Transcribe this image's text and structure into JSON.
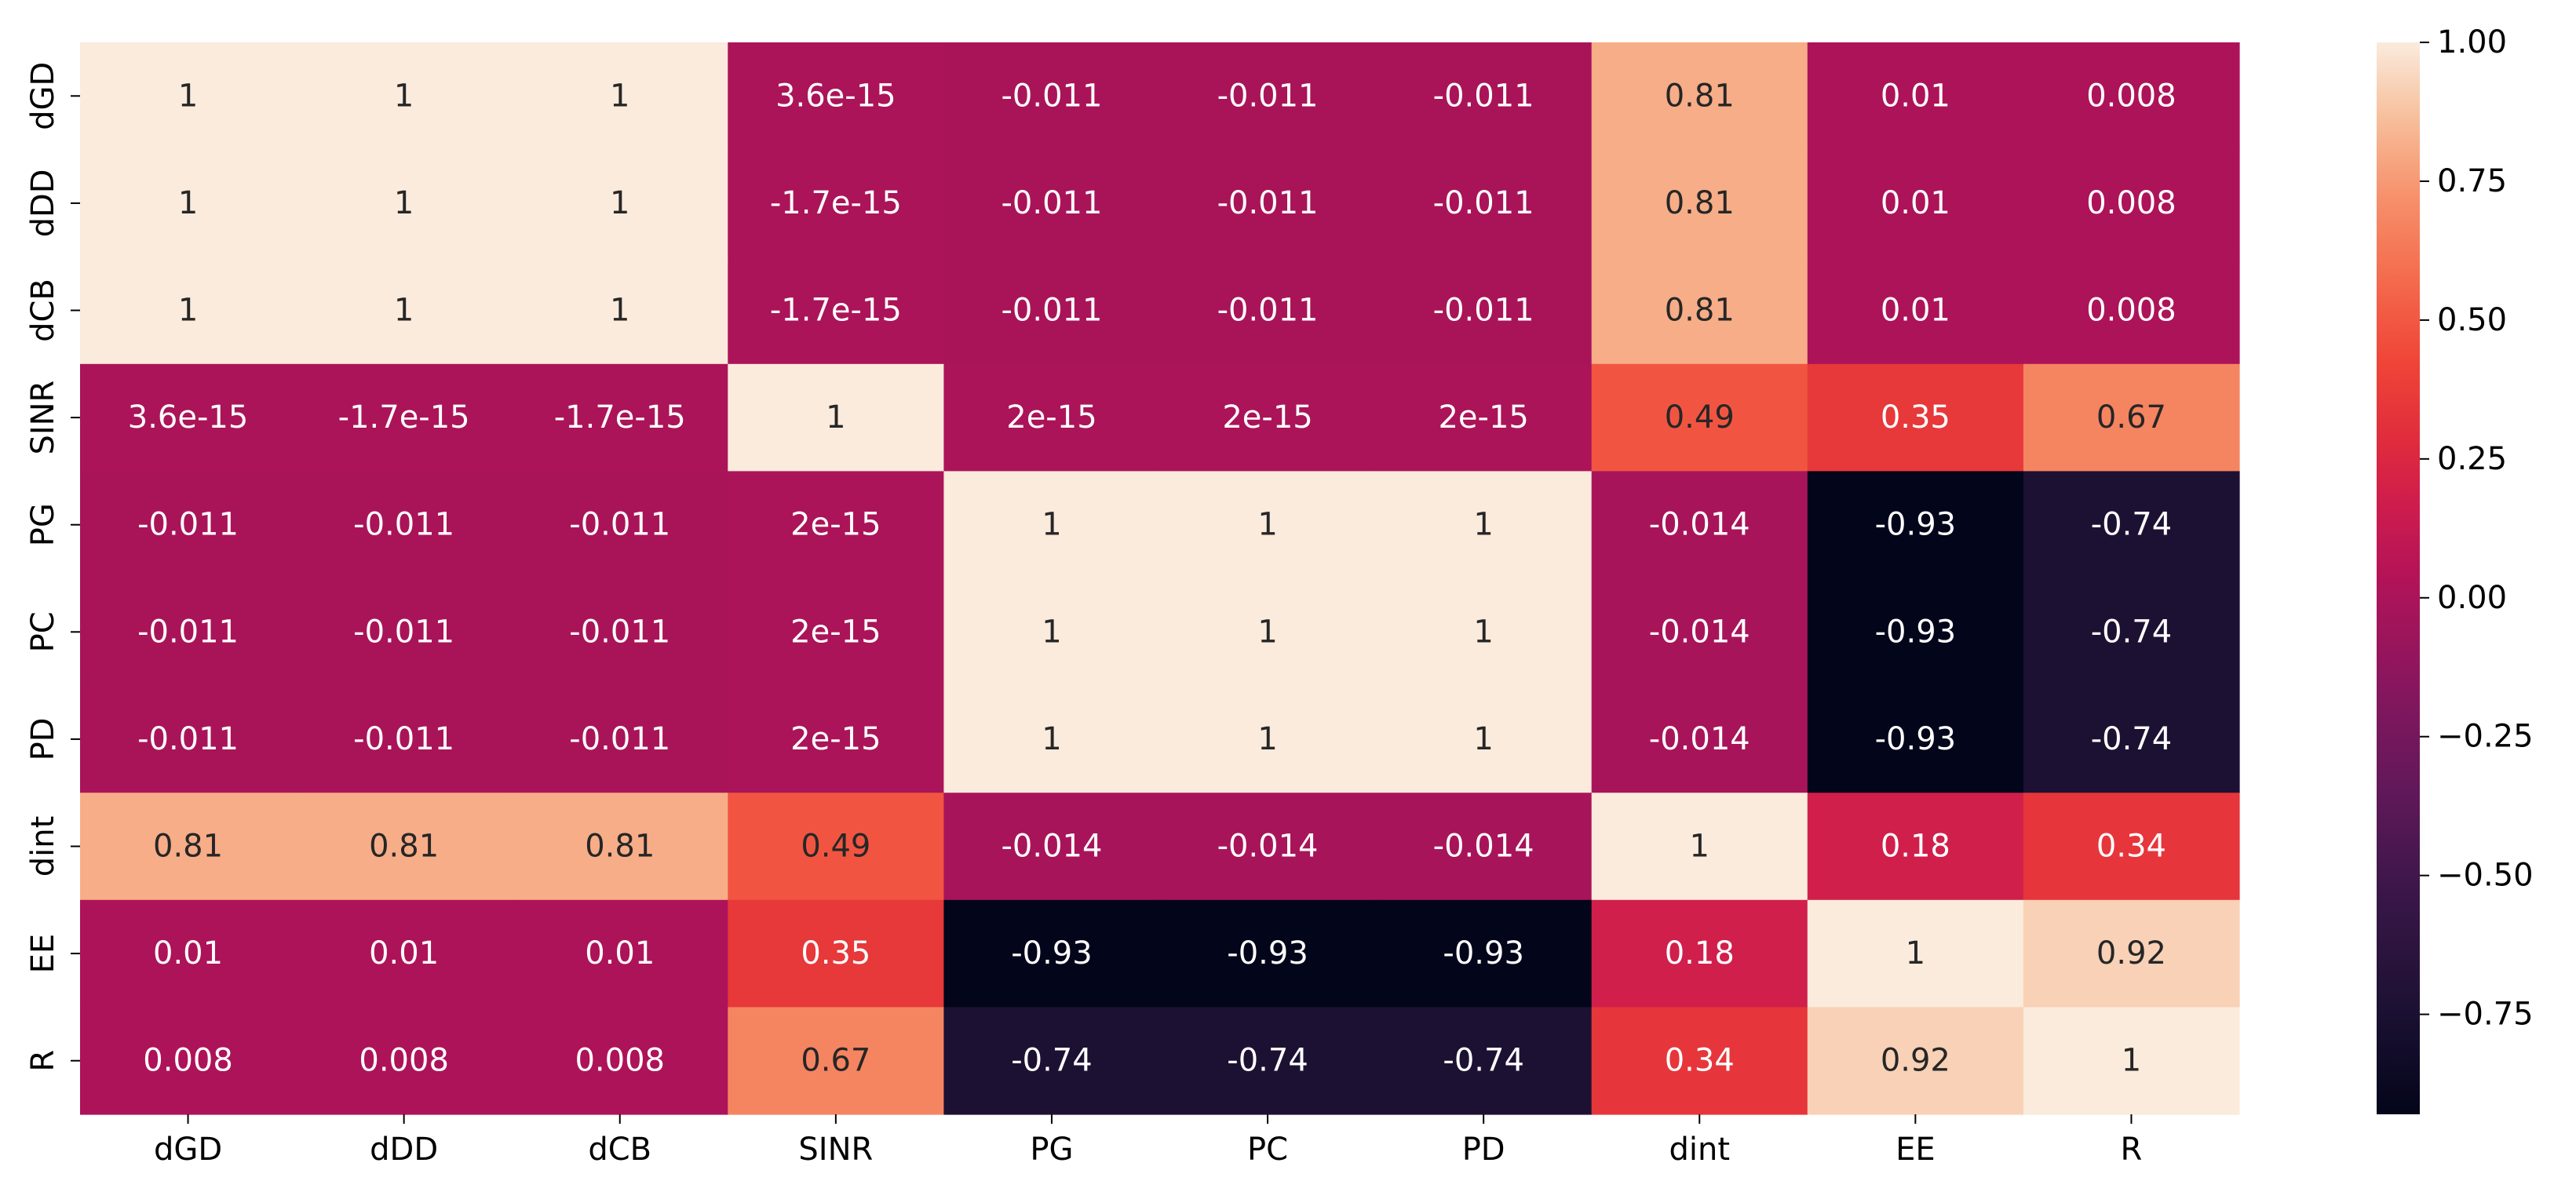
{
  "chart_data": {
    "type": "heatmap",
    "title": "",
    "xlabel": "",
    "ylabel": "",
    "x_labels": [
      "dGD",
      "dDD",
      "dCB",
      "SINR",
      "PG",
      "PC",
      "PD",
      "dint",
      "EE",
      "R"
    ],
    "y_labels": [
      "dGD",
      "dDD",
      "dCB",
      "SINR",
      "PG",
      "PC",
      "PD",
      "dint",
      "EE",
      "R"
    ],
    "values": [
      [
        1,
        1,
        1,
        3.6e-15,
        -0.011,
        -0.011,
        -0.011,
        0.81,
        0.01,
        0.008
      ],
      [
        1,
        1,
        1,
        -1.7e-15,
        -0.011,
        -0.011,
        -0.011,
        0.81,
        0.01,
        0.008
      ],
      [
        1,
        1,
        1,
        -1.7e-15,
        -0.011,
        -0.011,
        -0.011,
        0.81,
        0.01,
        0.008
      ],
      [
        3.6e-15,
        -1.7e-15,
        -1.7e-15,
        1,
        2e-15,
        2e-15,
        2e-15,
        0.49,
        0.35,
        0.67
      ],
      [
        -0.011,
        -0.011,
        -0.011,
        2e-15,
        1,
        1,
        1,
        -0.014,
        -0.93,
        -0.74
      ],
      [
        -0.011,
        -0.011,
        -0.011,
        2e-15,
        1,
        1,
        1,
        -0.014,
        -0.93,
        -0.74
      ],
      [
        -0.011,
        -0.011,
        -0.011,
        2e-15,
        1,
        1,
        1,
        -0.014,
        -0.93,
        -0.74
      ],
      [
        0.81,
        0.81,
        0.81,
        0.49,
        -0.014,
        -0.014,
        -0.014,
        1,
        0.18,
        0.34
      ],
      [
        0.01,
        0.01,
        0.01,
        0.35,
        -0.93,
        -0.93,
        -0.93,
        0.18,
        1,
        0.92
      ],
      [
        0.008,
        0.008,
        0.008,
        0.67,
        -0.74,
        -0.74,
        -0.74,
        0.34,
        0.92,
        1
      ]
    ],
    "annotations": [
      [
        "1",
        "1",
        "1",
        "3.6e-15",
        "-0.011",
        "-0.011",
        "-0.011",
        "0.81",
        "0.01",
        "0.008"
      ],
      [
        "1",
        "1",
        "1",
        "-1.7e-15",
        "-0.011",
        "-0.011",
        "-0.011",
        "0.81",
        "0.01",
        "0.008"
      ],
      [
        "1",
        "1",
        "1",
        "-1.7e-15",
        "-0.011",
        "-0.011",
        "-0.011",
        "0.81",
        "0.01",
        "0.008"
      ],
      [
        "3.6e-15",
        "-1.7e-15",
        "-1.7e-15",
        "1",
        "2e-15",
        "2e-15",
        "2e-15",
        "0.49",
        "0.35",
        "0.67"
      ],
      [
        "-0.011",
        "-0.011",
        "-0.011",
        "2e-15",
        "1",
        "1",
        "1",
        "-0.014",
        "-0.93",
        "-0.74"
      ],
      [
        "-0.011",
        "-0.011",
        "-0.011",
        "2e-15",
        "1",
        "1",
        "1",
        "-0.014",
        "-0.93",
        "-0.74"
      ],
      [
        "-0.011",
        "-0.011",
        "-0.011",
        "2e-15",
        "1",
        "1",
        "1",
        "-0.014",
        "-0.93",
        "-0.74"
      ],
      [
        "0.81",
        "0.81",
        "0.81",
        "0.49",
        "-0.014",
        "-0.014",
        "-0.014",
        "1",
        "0.18",
        "0.34"
      ],
      [
        "0.01",
        "0.01",
        "0.01",
        "0.35",
        "-0.93",
        "-0.93",
        "-0.93",
        "0.18",
        "1",
        "0.92"
      ],
      [
        "0.008",
        "0.008",
        "0.008",
        "0.67",
        "-0.74",
        "-0.74",
        "-0.74",
        "0.34",
        "0.92",
        "1"
      ]
    ],
    "vmin": -0.93,
    "vmax": 1.0,
    "colormap": "rocket",
    "colorbar": {
      "ticks": [
        1.0,
        0.75,
        0.5,
        0.25,
        0.0,
        -0.25,
        -0.5,
        -0.75
      ],
      "tick_labels": [
        "1.00",
        "0.75",
        "0.50",
        "0.25",
        "0.00",
        "−0.25",
        "−0.50",
        "−0.75"
      ]
    },
    "colors": {
      "low": "#03051a",
      "high": "#faebdd",
      "text_dark": "#262626",
      "text_light": "#ffffff"
    }
  }
}
